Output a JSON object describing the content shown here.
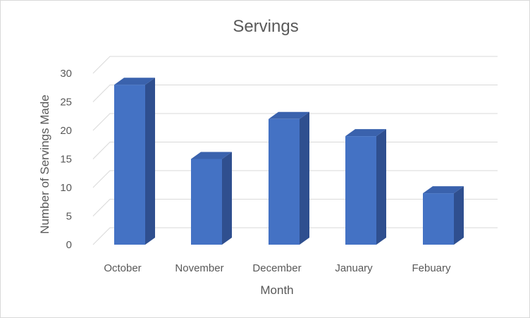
{
  "chart_data": {
    "type": "bar",
    "title": "Servings",
    "xlabel": "Month",
    "ylabel": "Number of Servings Made",
    "categories": [
      "October",
      "November",
      "December",
      "January",
      "Febuary"
    ],
    "values": [
      28,
      15,
      22,
      19,
      9
    ],
    "ylim": [
      0,
      30
    ],
    "yticks": [
      0,
      5,
      10,
      15,
      20,
      25,
      30
    ],
    "grid": true,
    "legend": "none",
    "bar_colors": {
      "front": "#4472c4",
      "side": "#2f4f8f",
      "top": "#3a62ad"
    },
    "grid_color": "#d9d9d9"
  }
}
